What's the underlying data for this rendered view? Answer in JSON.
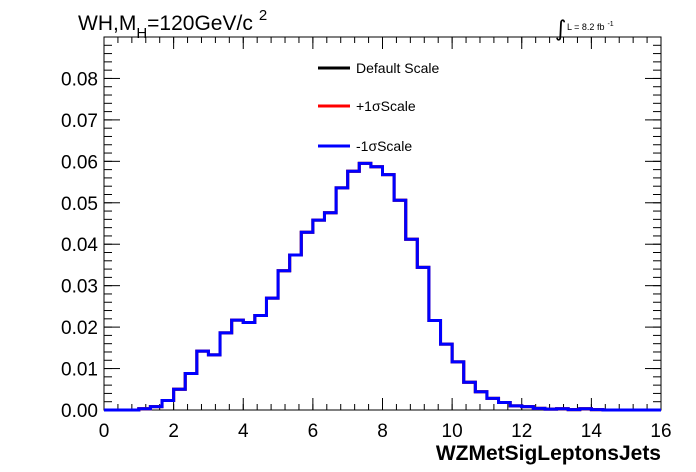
{
  "chart_data": {
    "type": "line",
    "title": {
      "prefix": "WH,M",
      "subscript": "H",
      "value": "=120GeV/c",
      "superscript": "2"
    },
    "luminosity": {
      "integral_symbol": "∫",
      "text": "L = 8.2 fb",
      "exponent": "-1"
    },
    "xlabel": "WZMetSigLeptonsJets",
    "ylabel": "",
    "xlim": [
      0,
      16
    ],
    "ylim": [
      0,
      0.09
    ],
    "x_ticks": [
      0,
      2,
      4,
      6,
      8,
      10,
      12,
      14,
      16
    ],
    "x_tick_labels": [
      "0",
      "2",
      "4",
      "6",
      "8",
      "10",
      "12",
      "14",
      "16"
    ],
    "y_ticks": [
      0,
      0.01,
      0.02,
      0.03,
      0.04,
      0.05,
      0.06,
      0.07,
      0.08
    ],
    "y_tick_labels": [
      "0.00",
      "0.01",
      "0.02",
      "0.03",
      "0.04",
      "0.05",
      "0.06",
      "0.07",
      "0.08"
    ],
    "grid": false,
    "legend_position": "top-center",
    "bin_edges": [
      0.0,
      0.333,
      0.667,
      1.0,
      1.333,
      1.667,
      2.0,
      2.333,
      2.667,
      3.0,
      3.333,
      3.667,
      4.0,
      4.333,
      4.667,
      5.0,
      5.333,
      5.667,
      6.0,
      6.333,
      6.667,
      7.0,
      7.333,
      7.667,
      8.0,
      8.333,
      8.667,
      9.0,
      9.333,
      9.667,
      10.0,
      10.333,
      10.667,
      11.0,
      11.333,
      11.667,
      12.0,
      12.333,
      12.667,
      13.0,
      13.333,
      13.667,
      14.0,
      14.333,
      14.667,
      15.0,
      15.333,
      15.667,
      16.0
    ],
    "series": [
      {
        "name": "Default Scale",
        "color": "#000000",
        "values": [
          0.0,
          0.0,
          0.0,
          0.0003,
          0.0008,
          0.0023,
          0.005,
          0.0088,
          0.0142,
          0.0133,
          0.0186,
          0.0217,
          0.0211,
          0.0228,
          0.027,
          0.0336,
          0.0374,
          0.0429,
          0.0458,
          0.0476,
          0.0536,
          0.0576,
          0.0595,
          0.0587,
          0.0568,
          0.0506,
          0.0412,
          0.0344,
          0.0216,
          0.0159,
          0.0116,
          0.0067,
          0.0044,
          0.0028,
          0.0018,
          0.001,
          0.0008,
          0.0004,
          0.0002,
          0.0003,
          0.0001,
          0.0003,
          0.0001,
          0.0,
          0.0,
          0.0,
          0.0,
          0.0
        ]
      },
      {
        "name": "+1σScale",
        "color": "#ff0000",
        "values": [
          0.0,
          0.0,
          0.0,
          0.0003,
          0.0008,
          0.0023,
          0.005,
          0.0088,
          0.0142,
          0.0133,
          0.0186,
          0.0217,
          0.0211,
          0.0228,
          0.027,
          0.0336,
          0.0374,
          0.0429,
          0.0458,
          0.0476,
          0.0536,
          0.0576,
          0.0595,
          0.0587,
          0.0568,
          0.0506,
          0.0412,
          0.0344,
          0.0216,
          0.0159,
          0.0116,
          0.0067,
          0.0044,
          0.0028,
          0.0018,
          0.001,
          0.0008,
          0.0004,
          0.0002,
          0.0003,
          0.0001,
          0.0003,
          0.0001,
          0.0,
          0.0,
          0.0,
          0.0,
          0.0
        ]
      },
      {
        "name": "-1σScale",
        "color": "#0000ff",
        "values": [
          0.0,
          0.0,
          0.0,
          0.0003,
          0.0008,
          0.0023,
          0.005,
          0.0088,
          0.0142,
          0.0133,
          0.0186,
          0.0217,
          0.0211,
          0.0228,
          0.027,
          0.0336,
          0.0374,
          0.0429,
          0.0458,
          0.0476,
          0.0536,
          0.0576,
          0.0595,
          0.0587,
          0.0568,
          0.0506,
          0.0412,
          0.0344,
          0.0216,
          0.0159,
          0.0116,
          0.0067,
          0.0044,
          0.0028,
          0.0018,
          0.001,
          0.0008,
          0.0004,
          0.0002,
          0.0003,
          0.0001,
          0.0003,
          0.0001,
          0.0,
          0.0,
          0.0,
          0.0,
          0.0
        ]
      }
    ]
  }
}
